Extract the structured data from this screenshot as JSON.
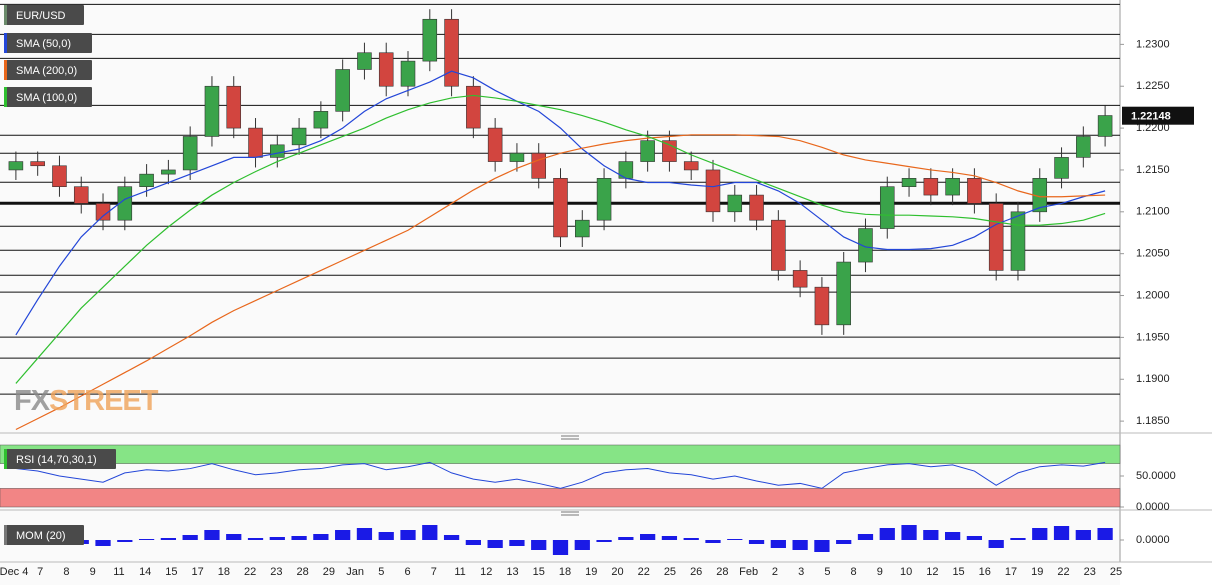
{
  "chart_data": [
    {
      "type": "candlestick",
      "name": "EUR/USD",
      "ylim": [
        1.1837,
        1.2353
      ],
      "yticks": [
        {
          "value": 1.23,
          "label": "1.2300"
        },
        {
          "value": 1.225,
          "label": "1.2250"
        },
        {
          "value": 1.22,
          "label": "1.2200"
        },
        {
          "value": 1.215,
          "label": "1.2150"
        },
        {
          "value": 1.21,
          "label": "1.2100"
        },
        {
          "value": 1.205,
          "label": "1.2050"
        },
        {
          "value": 1.2,
          "label": "1.2000"
        },
        {
          "value": 1.195,
          "label": "1.1950"
        },
        {
          "value": 1.19,
          "label": "1.1900"
        },
        {
          "value": 1.185,
          "label": "1.1850"
        }
      ],
      "last_price": {
        "value": 1.22148,
        "label": "1.22148"
      },
      "levels": [
        1.23477,
        1.23119,
        1.22833,
        1.22272,
        1.21914,
        1.21699,
        1.21353,
        1.21102,
        1.20827,
        1.20541,
        1.20243,
        1.2004,
        1.19503,
        1.19252,
        1.18822
      ],
      "thick_level": 1.21102,
      "up_color": "#3aa34a",
      "down_color": "#d2453f",
      "open": [
        1.215,
        1.216,
        1.2155,
        1.213,
        1.211,
        1.209,
        1.213,
        1.2145,
        1.215,
        1.219,
        1.225,
        1.22,
        1.2165,
        1.218,
        1.22,
        1.222,
        1.227,
        1.229,
        1.225,
        1.228,
        1.233,
        1.225,
        1.22,
        1.216,
        1.217,
        1.214,
        1.207,
        1.209,
        1.214,
        1.216,
        1.2185,
        1.216,
        1.215,
        1.21,
        1.212,
        1.209,
        1.203,
        1.201,
        1.1965,
        1.204,
        1.208,
        1.213,
        1.214,
        1.212,
        1.214,
        1.211,
        1.203,
        1.21,
        1.214,
        1.2165,
        1.219
      ],
      "high": [
        1.2172,
        1.2172,
        1.2167,
        1.2142,
        1.2122,
        1.2142,
        1.2157,
        1.2162,
        1.2202,
        1.2262,
        1.2262,
        1.2212,
        1.2192,
        1.2212,
        1.2232,
        1.2282,
        1.2302,
        1.2302,
        1.2292,
        1.2342,
        1.2342,
        1.2262,
        1.2212,
        1.2182,
        1.2182,
        1.2152,
        1.2102,
        1.2152,
        1.2172,
        1.2197,
        1.2197,
        1.2172,
        1.2162,
        1.2132,
        1.2132,
        1.2102,
        1.2042,
        1.2022,
        1.2052,
        1.2092,
        1.2142,
        1.2152,
        1.2152,
        1.2152,
        1.2152,
        1.2122,
        1.2112,
        1.2152,
        1.2177,
        1.2202,
        1.2227
      ],
      "low": [
        1.2138,
        1.2143,
        1.2118,
        1.2098,
        1.2078,
        1.2078,
        1.2118,
        1.2133,
        1.2138,
        1.2178,
        1.2188,
        1.2153,
        1.2153,
        1.2168,
        1.2188,
        1.2208,
        1.2258,
        1.2238,
        1.2238,
        1.2268,
        1.2238,
        1.2188,
        1.2148,
        1.2148,
        1.2128,
        1.2058,
        1.2058,
        1.2078,
        1.2128,
        1.2148,
        1.2148,
        1.2138,
        1.2088,
        1.2088,
        1.2078,
        1.2018,
        1.1998,
        1.1953,
        1.1953,
        1.2028,
        1.2068,
        1.2118,
        1.2108,
        1.2108,
        1.2098,
        1.2018,
        1.2018,
        1.2088,
        1.2128,
        1.2153,
        1.2178
      ],
      "close": [
        1.216,
        1.2155,
        1.213,
        1.211,
        1.209,
        1.213,
        1.2145,
        1.215,
        1.219,
        1.225,
        1.22,
        1.2165,
        1.218,
        1.22,
        1.222,
        1.227,
        1.229,
        1.225,
        1.228,
        1.233,
        1.225,
        1.22,
        1.216,
        1.217,
        1.214,
        1.207,
        1.209,
        1.214,
        1.216,
        1.2185,
        1.216,
        1.215,
        1.21,
        1.212,
        1.209,
        1.203,
        1.201,
        1.1965,
        1.204,
        1.208,
        1.213,
        1.214,
        1.212,
        1.214,
        1.211,
        1.203,
        1.21,
        1.214,
        1.2165,
        1.219,
        1.2215
      ],
      "series": [
        {
          "name": "SMA (50,0)",
          "color": "#2346d8",
          "values": [
            1.1953,
            1.1995,
            1.2035,
            1.207,
            1.2095,
            1.2115,
            1.2125,
            1.2135,
            1.2145,
            1.2155,
            1.2165,
            1.2165,
            1.217,
            1.2175,
            1.2185,
            1.22,
            1.222,
            1.2235,
            1.2245,
            1.2255,
            1.2268,
            1.226,
            1.2245,
            1.2232,
            1.222,
            1.22,
            1.2175,
            1.2155,
            1.214,
            1.2135,
            1.2135,
            1.2132,
            1.213,
            1.2135,
            1.2135,
            1.2125,
            1.211,
            1.209,
            1.207,
            1.2058,
            1.2055,
            1.2055,
            1.2056,
            1.206,
            1.207,
            1.2085,
            1.2095,
            1.2105,
            1.211,
            1.2118,
            1.2125
          ]
        },
        {
          "name": "SMA (200,0)",
          "color": "#e8671c",
          "values": [
            1.184,
            1.1853,
            1.1866,
            1.188,
            1.1894,
            1.1908,
            1.1922,
            1.1937,
            1.1952,
            1.1968,
            1.1982,
            1.1994,
            1.2006,
            1.2018,
            1.203,
            1.2042,
            1.2054,
            1.2066,
            1.2078,
            1.2094,
            1.211,
            1.2126,
            1.214,
            1.2152,
            1.2162,
            1.217,
            1.2176,
            1.2181,
            1.2185,
            1.2188,
            1.219,
            1.2192,
            1.2192,
            1.2192,
            1.2191,
            1.219,
            1.2185,
            1.2177,
            1.2168,
            1.2162,
            1.2158,
            1.2154,
            1.215,
            1.2147,
            1.2143,
            1.2135,
            1.2125,
            1.2118,
            1.2118,
            1.2119,
            1.212
          ]
        },
        {
          "name": "SMA (100,0)",
          "color": "#2fbf2f",
          "values": [
            1.1895,
            1.1925,
            1.1955,
            1.1985,
            1.201,
            1.2035,
            1.206,
            1.2082,
            1.2102,
            1.212,
            1.2135,
            1.2148,
            1.216,
            1.217,
            1.218,
            1.219,
            1.22,
            1.2212,
            1.2222,
            1.223,
            1.2236,
            1.2239,
            1.2236,
            1.2232,
            1.2227,
            1.2222,
            1.2215,
            1.2207,
            1.2198,
            1.219,
            1.218,
            1.2168,
            1.2158,
            1.2148,
            1.2138,
            1.2128,
            1.2118,
            1.2108,
            1.21,
            1.2097,
            1.2096,
            1.2096,
            1.2095,
            1.2094,
            1.2092,
            1.2088,
            1.2084,
            1.2084,
            1.2086,
            1.209,
            1.2098
          ]
        }
      ]
    },
    {
      "type": "line",
      "name": "RSI (14,70,30,1)",
      "ylim": [
        0,
        100
      ],
      "yticks": [
        {
          "value": 50,
          "label": "50.0000"
        },
        {
          "value": 0,
          "label": "0.0000"
        }
      ],
      "zones": [
        {
          "from": 70,
          "to": 100,
          "color": "#86e486"
        },
        {
          "from": 0,
          "to": 30,
          "color": "#f28585"
        }
      ],
      "color": "#2346d8",
      "values": [
        62,
        58,
        50,
        45,
        40,
        55,
        60,
        58,
        62,
        70,
        60,
        52,
        55,
        60,
        62,
        68,
        70,
        60,
        65,
        72,
        55,
        45,
        40,
        45,
        38,
        30,
        40,
        55,
        60,
        62,
        55,
        52,
        45,
        50,
        42,
        35,
        38,
        30,
        55,
        62,
        68,
        70,
        65,
        68,
        58,
        35,
        55,
        65,
        68,
        66,
        72
      ]
    },
    {
      "type": "bar",
      "name": "MOM (20)",
      "ylim": [
        -0.022,
        0.022
      ],
      "yticks": [
        {
          "value": 0,
          "label": "0.0000"
        }
      ],
      "color": "#1a1ae6",
      "values": [
        0.002,
        0.001,
        -0.002,
        -0.004,
        -0.006,
        -0.002,
        0.001,
        0.002,
        0.005,
        0.01,
        0.006,
        0.002,
        0.003,
        0.004,
        0.006,
        0.01,
        0.012,
        0.008,
        0.01,
        0.015,
        0.005,
        -0.005,
        -0.008,
        -0.006,
        -0.01,
        -0.015,
        -0.01,
        -0.002,
        0.003,
        0.006,
        0.004,
        0.002,
        -0.003,
        0.001,
        -0.004,
        -0.008,
        -0.01,
        -0.012,
        -0.004,
        0.006,
        0.012,
        0.015,
        0.01,
        0.008,
        0.004,
        -0.008,
        0.002,
        0.012,
        0.014,
        0.01,
        0.012
      ]
    }
  ],
  "x_labels": [
    "Dec 4",
    "7",
    "8",
    "9",
    "11",
    "14",
    "15",
    "17",
    "18",
    "22",
    "23",
    "28",
    "29",
    "Jan",
    "5",
    "6",
    "7",
    "11",
    "12",
    "13",
    "15",
    "18",
    "19",
    "20",
    "22",
    "25",
    "26",
    "28",
    "Feb",
    "2",
    "3",
    "5",
    "8",
    "9",
    "10",
    "12",
    "15",
    "16",
    "17",
    "19",
    "22",
    "23",
    "25"
  ],
  "watermark": [
    "FX",
    "STREET"
  ]
}
